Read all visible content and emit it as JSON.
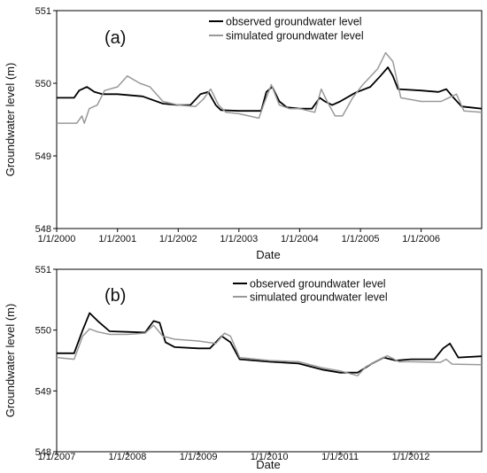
{
  "chart_data": [
    {
      "type": "line",
      "panel_label": "(a)",
      "xlabel": "Date",
      "ylabel": "Groundwater level (m)",
      "ylim": [
        548,
        551
      ],
      "xlim": [
        "2000-01-01",
        "2006-12-31"
      ],
      "y_ticks": [
        "548",
        "549",
        "550",
        "551"
      ],
      "x_ticks": [
        {
          "date": "2000-01-01",
          "label": "1/1/2000"
        },
        {
          "date": "2001-01-01",
          "label": "1/1/2001"
        },
        {
          "date": "2002-01-01",
          "label": "1/1/2002"
        },
        {
          "date": "2003-01-01",
          "label": "1/1/2003"
        },
        {
          "date": "2004-01-01",
          "label": "1/1/2004"
        },
        {
          "date": "2005-01-01",
          "label": "1/1/2005"
        },
        {
          "date": "2006-01-01",
          "label": "1/1/2006"
        }
      ],
      "legend_position": "top-right",
      "series": [
        {
          "name": "observed groundwater level",
          "color": "#000000",
          "points": [
            [
              "2000-01-01",
              549.8
            ],
            [
              "2000-04-15",
              549.8
            ],
            [
              "2000-05-15",
              549.9
            ],
            [
              "2000-07-01",
              549.95
            ],
            [
              "2000-08-15",
              549.88
            ],
            [
              "2000-10-01",
              549.85
            ],
            [
              "2001-01-01",
              549.85
            ],
            [
              "2001-06-01",
              549.82
            ],
            [
              "2001-10-01",
              549.72
            ],
            [
              "2002-01-01",
              549.7
            ],
            [
              "2002-03-15",
              549.7
            ],
            [
              "2002-05-15",
              549.85
            ],
            [
              "2002-07-01",
              549.88
            ],
            [
              "2002-08-15",
              549.7
            ],
            [
              "2002-09-15",
              549.63
            ],
            [
              "2003-01-01",
              549.62
            ],
            [
              "2003-05-15",
              549.62
            ],
            [
              "2003-06-15",
              549.88
            ],
            [
              "2003-07-20",
              549.95
            ],
            [
              "2003-09-01",
              549.75
            ],
            [
              "2003-10-15",
              549.67
            ],
            [
              "2004-01-01",
              549.65
            ],
            [
              "2004-03-15",
              549.65
            ],
            [
              "2004-05-01",
              549.8
            ],
            [
              "2004-06-01",
              549.75
            ],
            [
              "2004-07-15",
              549.7
            ],
            [
              "2004-09-01",
              549.75
            ],
            [
              "2004-12-01",
              549.87
            ],
            [
              "2005-03-01",
              549.95
            ],
            [
              "2005-05-01",
              550.1
            ],
            [
              "2005-06-15",
              550.22
            ],
            [
              "2005-07-15",
              550.1
            ],
            [
              "2005-08-15",
              549.92
            ],
            [
              "2006-01-01",
              549.9
            ],
            [
              "2006-04-15",
              549.88
            ],
            [
              "2006-06-01",
              549.92
            ],
            [
              "2006-07-15",
              549.8
            ],
            [
              "2006-09-01",
              549.68
            ],
            [
              "2006-12-31",
              549.65
            ]
          ]
        },
        {
          "name": "simulated groundwater level",
          "color": "#999999",
          "points": [
            [
              "2000-01-01",
              549.45
            ],
            [
              "2000-05-01",
              549.45
            ],
            [
              "2000-06-01",
              549.55
            ],
            [
              "2000-06-15",
              549.45
            ],
            [
              "2000-07-15",
              549.65
            ],
            [
              "2000-09-01",
              549.7
            ],
            [
              "2000-10-15",
              549.9
            ],
            [
              "2001-01-01",
              549.95
            ],
            [
              "2001-03-01",
              550.1
            ],
            [
              "2001-05-15",
              550.0
            ],
            [
              "2001-07-15",
              549.95
            ],
            [
              "2001-10-01",
              549.75
            ],
            [
              "2002-01-01",
              549.7
            ],
            [
              "2002-04-15",
              549.68
            ],
            [
              "2002-06-01",
              549.78
            ],
            [
              "2002-07-15",
              549.92
            ],
            [
              "2002-09-01",
              549.7
            ],
            [
              "2002-10-15",
              549.6
            ],
            [
              "2003-01-01",
              549.58
            ],
            [
              "2003-05-01",
              549.52
            ],
            [
              "2003-06-01",
              549.72
            ],
            [
              "2003-07-15",
              549.98
            ],
            [
              "2003-09-01",
              549.7
            ],
            [
              "2003-11-01",
              549.65
            ],
            [
              "2004-01-01",
              549.65
            ],
            [
              "2004-04-01",
              549.6
            ],
            [
              "2004-05-10",
              549.92
            ],
            [
              "2004-06-15",
              549.75
            ],
            [
              "2004-08-01",
              549.55
            ],
            [
              "2004-09-15",
              549.55
            ],
            [
              "2004-11-15",
              549.8
            ],
            [
              "2005-01-15",
              549.98
            ],
            [
              "2005-04-15",
              550.2
            ],
            [
              "2005-06-01",
              550.42
            ],
            [
              "2005-07-15",
              550.3
            ],
            [
              "2005-09-01",
              549.8
            ],
            [
              "2006-01-01",
              549.75
            ],
            [
              "2006-05-01",
              549.75
            ],
            [
              "2006-08-01",
              549.85
            ],
            [
              "2006-09-15",
              549.62
            ],
            [
              "2006-12-31",
              549.6
            ]
          ]
        }
      ]
    },
    {
      "type": "line",
      "panel_label": "(b)",
      "xlabel": "Date",
      "ylabel": "Groundwater level (m)",
      "ylim": [
        548,
        551
      ],
      "xlim": [
        "2007-01-01",
        "2012-12-31"
      ],
      "y_ticks": [
        "548",
        "549",
        "550",
        "551"
      ],
      "x_ticks": [
        {
          "date": "2007-01-01",
          "label": "1/1/2007"
        },
        {
          "date": "2008-01-01",
          "label": "1/1/2008"
        },
        {
          "date": "2009-01-01",
          "label": "1/1/2009"
        },
        {
          "date": "2010-01-01",
          "label": "1/1/2010"
        },
        {
          "date": "2011-01-01",
          "label": "1/1/2011"
        },
        {
          "date": "2012-01-01",
          "label": "1/1/2012"
        }
      ],
      "legend_position": "top-right",
      "series": [
        {
          "name": "observed groundwater level",
          "color": "#000000",
          "points": [
            [
              "2007-01-01",
              549.62
            ],
            [
              "2007-04-01",
              549.62
            ],
            [
              "2007-05-15",
              550.0
            ],
            [
              "2007-06-20",
              550.28
            ],
            [
              "2007-08-01",
              550.15
            ],
            [
              "2007-10-01",
              549.98
            ],
            [
              "2008-01-01",
              549.97
            ],
            [
              "2008-04-01",
              549.96
            ],
            [
              "2008-05-15",
              550.15
            ],
            [
              "2008-06-15",
              550.12
            ],
            [
              "2008-07-15",
              549.8
            ],
            [
              "2008-09-01",
              549.72
            ],
            [
              "2009-01-01",
              549.7
            ],
            [
              "2009-03-01",
              549.7
            ],
            [
              "2009-05-01",
              549.9
            ],
            [
              "2009-06-15",
              549.8
            ],
            [
              "2009-08-01",
              549.52
            ],
            [
              "2010-01-01",
              549.48
            ],
            [
              "2010-06-01",
              549.45
            ],
            [
              "2010-10-01",
              549.35
            ],
            [
              "2011-01-01",
              549.3
            ],
            [
              "2011-04-01",
              549.3
            ],
            [
              "2011-06-15",
              549.45
            ],
            [
              "2011-08-15",
              549.55
            ],
            [
              "2011-10-15",
              549.5
            ],
            [
              "2012-01-01",
              549.52
            ],
            [
              "2012-05-01",
              549.52
            ],
            [
              "2012-06-15",
              549.7
            ],
            [
              "2012-07-20",
              549.78
            ],
            [
              "2012-09-01",
              549.55
            ],
            [
              "2012-12-31",
              549.57
            ]
          ]
        },
        {
          "name": "simulated groundwater level",
          "color": "#999999",
          "points": [
            [
              "2007-01-01",
              549.55
            ],
            [
              "2007-04-01",
              549.52
            ],
            [
              "2007-05-15",
              549.9
            ],
            [
              "2007-06-20",
              550.02
            ],
            [
              "2007-08-01",
              549.97
            ],
            [
              "2007-10-01",
              549.93
            ],
            [
              "2008-01-01",
              549.93
            ],
            [
              "2008-04-01",
              549.95
            ],
            [
              "2008-05-15",
              550.08
            ],
            [
              "2008-07-01",
              549.9
            ],
            [
              "2008-09-01",
              549.85
            ],
            [
              "2009-01-01",
              549.82
            ],
            [
              "2009-04-01",
              549.78
            ],
            [
              "2009-05-15",
              549.95
            ],
            [
              "2009-06-15",
              549.9
            ],
            [
              "2009-08-01",
              549.55
            ],
            [
              "2010-01-01",
              549.5
            ],
            [
              "2010-06-01",
              549.48
            ],
            [
              "2010-10-01",
              549.38
            ],
            [
              "2011-01-01",
              549.33
            ],
            [
              "2011-04-01",
              549.25
            ],
            [
              "2011-05-15",
              549.4
            ],
            [
              "2011-07-15",
              549.5
            ],
            [
              "2011-09-01",
              549.58
            ],
            [
              "2011-11-01",
              549.48
            ],
            [
              "2012-01-01",
              549.48
            ],
            [
              "2012-06-01",
              549.47
            ],
            [
              "2012-07-01",
              549.52
            ],
            [
              "2012-08-01",
              549.44
            ],
            [
              "2012-12-31",
              549.43
            ]
          ]
        }
      ]
    }
  ]
}
